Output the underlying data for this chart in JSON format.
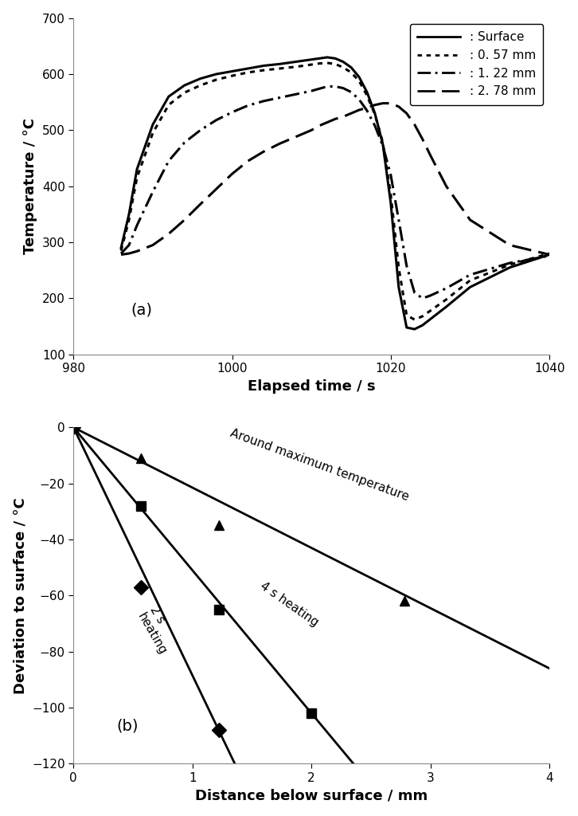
{
  "top_plot": {
    "xlim": [
      980,
      1040
    ],
    "ylim": [
      100,
      700
    ],
    "xlabel": "Elapsed time / s",
    "ylabel": "Temperature / °C",
    "yticks": [
      100,
      200,
      300,
      400,
      500,
      600,
      700
    ],
    "xticks": [
      980,
      1000,
      1020,
      1040
    ],
    "label_a": "(a)",
    "curves": {
      "surface": {
        "x": [
          986,
          987,
          988,
          990,
          992,
          994,
          996,
          998,
          1000,
          1002,
          1004,
          1006,
          1008,
          1010,
          1011,
          1012,
          1013,
          1014,
          1015,
          1016,
          1017,
          1018,
          1019,
          1020,
          1021,
          1022,
          1023,
          1024,
          1025,
          1027,
          1030,
          1035,
          1040
        ],
        "y": [
          290,
          350,
          430,
          510,
          560,
          580,
          592,
          600,
          605,
          610,
          615,
          618,
          622,
          626,
          628,
          630,
          628,
          622,
          612,
          595,
          568,
          530,
          475,
          370,
          220,
          148,
          145,
          152,
          163,
          185,
          220,
          255,
          278
        ],
        "linestyle": "solid",
        "linewidth": 2.2
      },
      "d057": {
        "x": [
          986,
          987,
          988,
          990,
          992,
          994,
          996,
          998,
          1000,
          1002,
          1004,
          1006,
          1008,
          1010,
          1011,
          1012,
          1013,
          1014,
          1015,
          1016,
          1017,
          1018,
          1019,
          1020,
          1021,
          1022,
          1023,
          1024,
          1025,
          1027,
          1030,
          1035,
          1040
        ],
        "y": [
          285,
          340,
          415,
          495,
          545,
          567,
          580,
          590,
          597,
          603,
          607,
          610,
          613,
          617,
          619,
          620,
          618,
          612,
          603,
          588,
          562,
          528,
          478,
          385,
          255,
          170,
          162,
          168,
          178,
          198,
          232,
          260,
          280
        ],
        "linestyle": "dotted",
        "linewidth": 2.2
      },
      "d122": {
        "x": [
          986,
          987,
          988,
          990,
          992,
          994,
          996,
          998,
          1000,
          1002,
          1004,
          1006,
          1008,
          1010,
          1011,
          1012,
          1013,
          1014,
          1015,
          1016,
          1017,
          1018,
          1019,
          1020,
          1021,
          1022,
          1023,
          1024,
          1025,
          1027,
          1030,
          1035,
          1040
        ],
        "y": [
          280,
          295,
          330,
          390,
          445,
          478,
          500,
          518,
          532,
          544,
          552,
          558,
          564,
          570,
          574,
          578,
          578,
          575,
          568,
          555,
          535,
          508,
          472,
          420,
          340,
          258,
          210,
          200,
          205,
          218,
          242,
          263,
          276
        ],
        "linestyle": "dashdot",
        "linewidth": 2.2
      },
      "d278": {
        "x": [
          986,
          987,
          988,
          990,
          992,
          994,
          996,
          998,
          1000,
          1002,
          1004,
          1006,
          1008,
          1010,
          1011,
          1012,
          1013,
          1014,
          1015,
          1016,
          1017,
          1018,
          1019,
          1020,
          1021,
          1022,
          1023,
          1024,
          1025,
          1027,
          1030,
          1035,
          1040
        ],
        "y": [
          278,
          280,
          284,
          295,
          315,
          340,
          368,
          395,
          422,
          445,
          462,
          476,
          488,
          500,
          508,
          514,
          520,
          524,
          530,
          536,
          540,
          545,
          548,
          548,
          542,
          530,
          510,
          484,
          455,
          400,
          340,
          295,
          278
        ],
        "linestyle": "dashed",
        "linewidth": 2.2
      }
    }
  },
  "bottom_plot": {
    "xlim": [
      0,
      4
    ],
    "ylim": [
      -120,
      0
    ],
    "xlabel": "Distance below surface / mm",
    "ylabel": "Deviation to surface / °C",
    "yticks": [
      0,
      -20,
      -40,
      -60,
      -80,
      -100,
      -120
    ],
    "xticks": [
      0,
      1,
      2,
      3,
      4
    ],
    "label_b": "(b)",
    "curves": {
      "around_max": {
        "x": [
          0,
          0.57,
          1.22,
          2.78
        ],
        "y": [
          0,
          -11,
          -35,
          -62
        ],
        "slope": -21.5,
        "marker": "^",
        "markersize": 9,
        "ann_x": 1.3,
        "ann_y": -27,
        "ann_rotation": -20,
        "ann_text": "Around maximum temperature"
      },
      "heating_4s": {
        "x": [
          0,
          0.57,
          1.22,
          2.0
        ],
        "y": [
          0,
          -28,
          -65,
          -102
        ],
        "slope": -51.0,
        "marker": "s",
        "markersize": 9,
        "ann_x": 1.55,
        "ann_y": -72,
        "ann_rotation": -35,
        "ann_text": "4 s heating"
      },
      "heating_2s": {
        "x": [
          0,
          0.57,
          1.22
        ],
        "y": [
          0,
          -57,
          -108
        ],
        "slope": -88.5,
        "marker": "D",
        "markersize": 9,
        "ann_x": 0.52,
        "ann_y": -82,
        "ann_rotation": -60,
        "ann_text": "2 s\nheating"
      }
    }
  },
  "figure_bg": "#ffffff",
  "axes_bg": "#ffffff",
  "line_color": "#000000",
  "tick_color": "#000000",
  "label_fontsize": 13,
  "tick_fontsize": 11,
  "annotation_fontsize": 11
}
